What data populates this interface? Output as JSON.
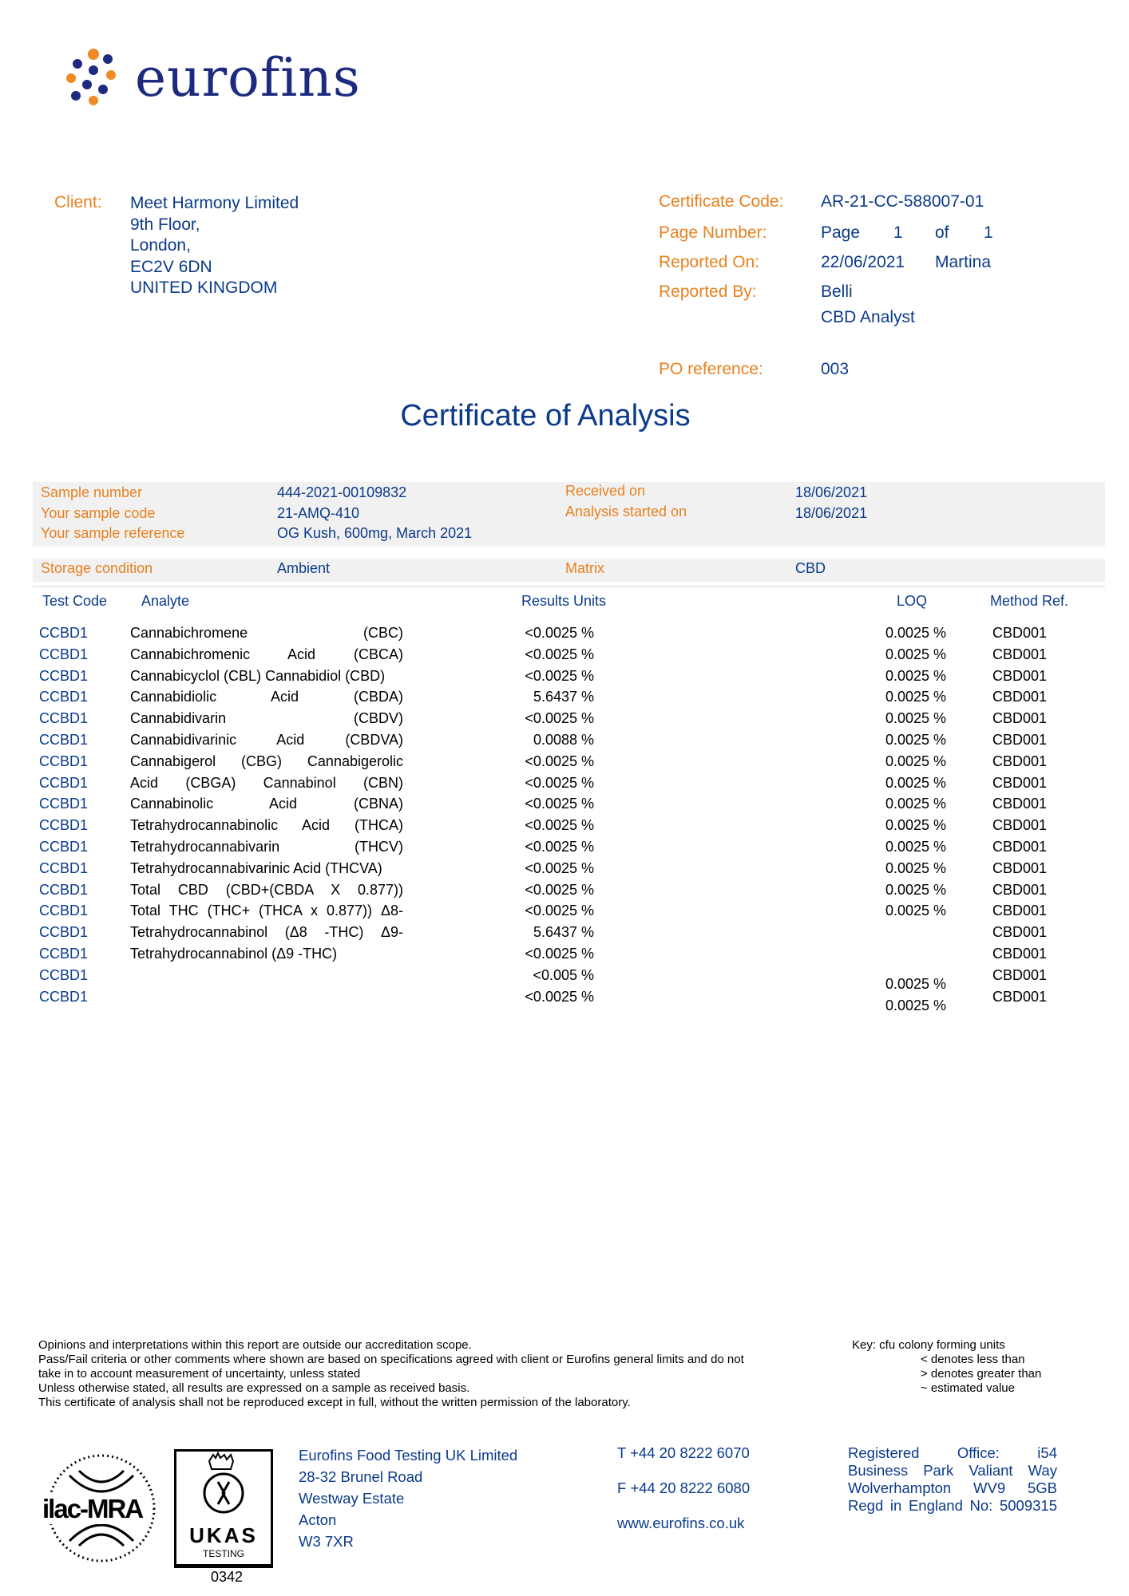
{
  "logo": {
    "text": "eurofins"
  },
  "client": {
    "label": "Client:",
    "lines": [
      "Meet Harmony Limited",
      "9th Floor,",
      "London,",
      "EC2V 6DN",
      "UNITED KINGDOM"
    ]
  },
  "certificate": {
    "code_label": "Certificate Code:",
    "code": "AR-21-CC-588007-01",
    "page_label": "Page Number:",
    "page_word": "Page",
    "page_num": "1",
    "of_word": "of",
    "page_total": "1",
    "reported_on_label": "Reported On:",
    "reported_on": "22/06/2021",
    "reported_on_extra": "Martina",
    "reported_by_label": "Reported By:",
    "reported_by": "Belli",
    "reported_by_role": "CBD Analyst",
    "po_label": "PO reference:",
    "po": "003"
  },
  "title": "Certificate of Analysis",
  "sample": {
    "number_label": "Sample number",
    "number": "444-2021-00109832",
    "code_label": "Your sample code",
    "code": "21-AMQ-410",
    "reference_label": "Your sample reference",
    "reference": "OG Kush, 600mg, March 2021",
    "received_label": "Received on",
    "received": "18/06/2021",
    "started_label": "Analysis started on",
    "started": "18/06/2021",
    "storage_label": "Storage condition",
    "storage": "Ambient",
    "matrix_label": "Matrix",
    "matrix": "CBD"
  },
  "table": {
    "headers": {
      "test_code": "Test Code",
      "analyte": "Analyte",
      "results": "Results Units",
      "loq": "LOQ",
      "method": "Method Ref."
    },
    "rows": [
      {
        "code": "CCBD1",
        "analyte": "Cannabichromene (CBC)",
        "result": "<0.0025 %",
        "loq": "0.0025 %",
        "method": "CBD001"
      },
      {
        "code": "CCBD1",
        "analyte": "Cannabichromenic Acid (CBCA)",
        "result": "<0.0025 %",
        "loq": "0.0025 %",
        "method": "CBD001"
      },
      {
        "code": "CCBD1",
        "analyte": "Cannabicyclol (CBL) Cannabidiol (CBD)",
        "result": "<0.0025 %",
        "loq": "0.0025 %",
        "method": "CBD001"
      },
      {
        "code": "CCBD1",
        "analyte": "Cannabidiolic Acid (CBDA)",
        "result": "5.6437 %",
        "loq": "0.0025 %",
        "method": "CBD001"
      },
      {
        "code": "CCBD1",
        "analyte": "Cannabidivarin (CBDV)",
        "result": "<0.0025 %",
        "loq": "0.0025 %",
        "method": "CBD001"
      },
      {
        "code": "CCBD1",
        "analyte": "Cannabidivarinic Acid (CBDVA)",
        "result": "0.0088 %",
        "loq": "0.0025 %",
        "method": "CBD001"
      },
      {
        "code": "CCBD1",
        "analyte": "Cannabigerol (CBG) Cannabigerolic",
        "result": "<0.0025 %",
        "loq": "0.0025 %",
        "method": "CBD001"
      },
      {
        "code": "CCBD1",
        "analyte": "Acid (CBGA) Cannabinol (CBN)",
        "result": "<0.0025 %",
        "loq": "0.0025 %",
        "method": "CBD001"
      },
      {
        "code": "CCBD1",
        "analyte": "Cannabinolic Acid (CBNA)",
        "result": "<0.0025 %",
        "loq": "0.0025 %",
        "method": "CBD001"
      },
      {
        "code": "CCBD1",
        "analyte": "Tetrahydrocannabinolic Acid (THCA)",
        "result": "<0.0025 %",
        "loq": "0.0025 %",
        "method": "CBD001"
      },
      {
        "code": "CCBD1",
        "analyte": "Tetrahydrocannabivarin (THCV)",
        "result": "<0.0025 %",
        "loq": "0.0025 %",
        "method": "CBD001"
      },
      {
        "code": "CCBD1",
        "analyte": "Tetrahydrocannabivarinic Acid (THCVA)",
        "result": "<0.0025 %",
        "loq": "0.0025 %",
        "method": "CBD001"
      },
      {
        "code": "CCBD1",
        "analyte": "Total CBD (CBD+(CBDA X 0.877))",
        "result": "<0.0025 %",
        "loq": "0.0025 %",
        "method": "CBD001"
      },
      {
        "code": "CCBD1",
        "analyte": "Total THC (THC+ (THCA x 0.877)) Δ8-",
        "result": "<0.0025 %",
        "loq": "0.0025 %",
        "method": "CBD001"
      },
      {
        "code": "CCBD1",
        "analyte": "Tetrahydrocannabinol (Δ8 -THC) Δ9-",
        "result": "5.6437 %",
        "loq": "",
        "method": "CBD001"
      },
      {
        "code": "CCBD1",
        "analyte": "Tetrahydrocannabinol (Δ9 -THC)",
        "result": "<0.0025 %",
        "loq": "",
        "method": "CBD001"
      },
      {
        "code": "CCBD1",
        "analyte": "",
        "result": "<0.005 %",
        "loq": "0.0025 %",
        "method": "CBD001"
      },
      {
        "code": "CCBD1",
        "analyte": "",
        "result": "<0.0025 %",
        "loq": "0.0025 %",
        "method": "CBD001"
      }
    ]
  },
  "disclaimer": [
    "Opinions and interpretations within this report are outside our accreditation scope.",
    "Pass/Fail criteria or other comments where shown are based on specifications agreed with client or Eurofins general limits and do not",
    "take in to account measurement of uncertainty, unless stated",
    "Unless otherwise stated, all results are expressed on a sample as received basis.",
    "This certificate of analysis shall not be reproduced except in full, without the written permission of the laboratory."
  ],
  "key": {
    "title": "Key:  cfu colony forming units",
    "items": [
      "< denotes less than",
      "> denotes greater than",
      "~ estimated value"
    ]
  },
  "accreditation": {
    "ilac": "ilac-MRA",
    "ukas": "UKAS",
    "ukas_sub": "TESTING",
    "number": "0342"
  },
  "address": [
    "Eurofins Food Testing UK Limited",
    "28-32 Brunel Road",
    "Westway Estate",
    "Acton",
    "W3 7XR"
  ],
  "contact": {
    "phone": "T +44 20 8222 6070",
    "fax": "F +44 20 8222 6080",
    "web": "www.eurofins.co.uk"
  },
  "registered": [
    "Registered Office: i54",
    "Business Park Valiant Way",
    "Wolverhampton WV9 5GB",
    "Regd in England No: 5009315"
  ],
  "colors": {
    "orange": "#e8801e",
    "blue": "#0b3a8a",
    "panel": "#f1f1f1"
  }
}
